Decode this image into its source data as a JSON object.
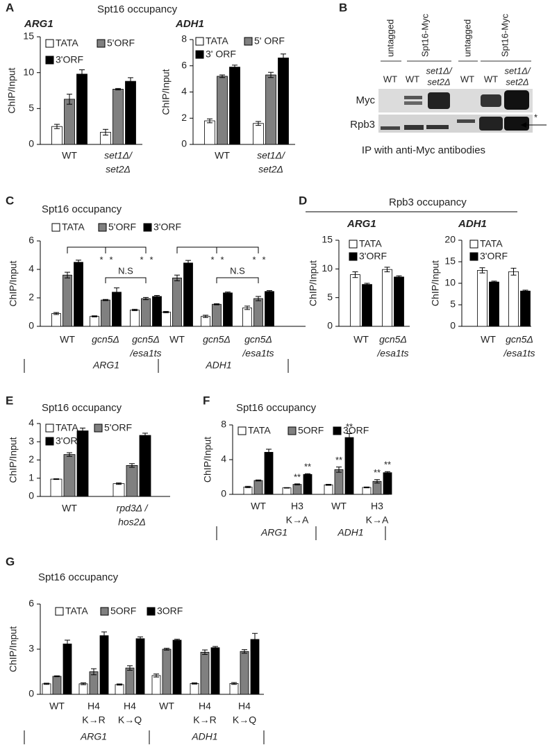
{
  "panels": [
    {
      "letter": "A",
      "title": "Spt16 occupancy"
    },
    {
      "letter": "B"
    },
    {
      "letter": "C",
      "title": "Spt16 occupancy"
    },
    {
      "letter": "D",
      "title": "Rpb3 occupancy"
    },
    {
      "letter": "E",
      "title": "Spt16 occupancy"
    },
    {
      "letter": "F",
      "title": "Spt16 occupancy"
    },
    {
      "letter": "G",
      "title": "Spt16 occupancy"
    }
  ],
  "blot": {
    "headers": [
      "untagged",
      "Spt16-Myc",
      "untagged",
      "Spt16-Myc"
    ],
    "lanes": [
      "WT",
      "WT",
      [
        "set1Δ/",
        "set2Δ"
      ],
      "WT",
      "WT",
      [
        "set1Δ/",
        "set2Δ"
      ]
    ],
    "rows": [
      "Myc",
      "Rpb3"
    ],
    "marker": "*",
    "caption": "IP with anti-Myc antibodies"
  },
  "chart_data": [
    {
      "type": "bar",
      "title": "ARG1",
      "ylabel": "ChIP/Input",
      "categories": [
        "WT",
        [
          "set1Δ/",
          "set2Δ"
        ]
      ],
      "italic": [
        false,
        true
      ],
      "ylim": [
        0,
        15
      ],
      "yticks": [
        0,
        5,
        10,
        15
      ],
      "series": [
        {
          "name": "TATA",
          "color": "#ffffff",
          "values": [
            2.5,
            1.7
          ],
          "errors": [
            0.3,
            0.4
          ]
        },
        {
          "name": "5'ORF",
          "color": "#808080",
          "values": [
            6.3,
            7.7
          ],
          "errors": [
            0.7,
            0.1
          ]
        },
        {
          "name": "3'ORF",
          "color": "#000000",
          "values": [
            9.8,
            8.8
          ],
          "errors": [
            0.6,
            0.5
          ]
        }
      ]
    },
    {
      "type": "bar",
      "title": "ADH1",
      "ylabel": "ChIP/Input",
      "categories": [
        "WT",
        [
          "set1Δ/",
          "set2Δ"
        ]
      ],
      "italic": [
        false,
        true
      ],
      "ylim": [
        0,
        8
      ],
      "yticks": [
        0,
        2,
        4,
        6,
        8
      ],
      "series": [
        {
          "name": "TATA",
          "color": "#ffffff",
          "values": [
            1.8,
            1.6
          ],
          "errors": [
            0.15,
            0.15
          ]
        },
        {
          "name": "5' ORF",
          "color": "#808080",
          "values": [
            5.2,
            5.3
          ],
          "errors": [
            0.1,
            0.2
          ]
        },
        {
          "name": "3' ORF",
          "color": "#000000",
          "values": [
            5.9,
            6.6
          ],
          "errors": [
            0.15,
            0.3
          ]
        }
      ]
    },
    {
      "type": "bar",
      "ylabel": "ChIP/Input",
      "categories": [
        "WT",
        "gcn5Δ",
        [
          "gcn5Δ",
          "/esa1ts"
        ],
        "WT",
        "gcn5Δ",
        [
          "gcn5Δ",
          "/esa1ts"
        ]
      ],
      "italic": [
        false,
        true,
        true,
        false,
        true,
        true
      ],
      "groups": [
        "ARG1",
        "ADH1"
      ],
      "ylim": [
        0,
        6
      ],
      "yticks": [
        0,
        2,
        4,
        6
      ],
      "ns_labels": [
        "N.S",
        "N.S"
      ],
      "series": [
        {
          "name": "TATA",
          "color": "#ffffff",
          "values": [
            0.9,
            0.7,
            1.15,
            1.0,
            0.7,
            1.3
          ],
          "errors": [
            0.07,
            0.04,
            0.05,
            0.05,
            0.08,
            0.12
          ]
        },
        {
          "name": "5'ORF",
          "color": "#808080",
          "values": [
            3.6,
            1.85,
            1.95,
            3.4,
            1.55,
            1.95
          ],
          "errors": [
            0.2,
            0.04,
            0.08,
            0.2,
            0.04,
            0.15
          ]
        },
        {
          "name": "3'ORF",
          "color": "#000000",
          "values": [
            4.5,
            2.4,
            2.1,
            4.45,
            2.35,
            2.45
          ],
          "errors": [
            0.15,
            0.3,
            0.07,
            0.18,
            0.06,
            0.06
          ],
          "annotations": [
            null,
            "*",
            "*",
            null,
            "*",
            "*"
          ]
        }
      ],
      "bracket_marks": [
        null,
        "*",
        "*",
        null,
        "*",
        "*"
      ]
    },
    {
      "type": "bar",
      "title": "ARG1",
      "ylabel": "ChIP/Input",
      "categories": [
        "WT",
        [
          "gcn5Δ",
          "/esa1ts"
        ]
      ],
      "italic": [
        false,
        true
      ],
      "ylim": [
        0,
        15
      ],
      "yticks": [
        0,
        5,
        10,
        15
      ],
      "series": [
        {
          "name": "TATA",
          "color": "#ffffff",
          "values": [
            9.0,
            9.9
          ],
          "errors": [
            0.5,
            0.4
          ]
        },
        {
          "name": "3'ORF",
          "color": "#000000",
          "values": [
            7.3,
            8.6
          ],
          "errors": [
            0.2,
            0.2
          ]
        }
      ]
    },
    {
      "type": "bar",
      "title": "ADH1",
      "ylabel": "ChIP/Input",
      "categories": [
        "WT",
        [
          "gcn5Δ",
          "/esa1ts"
        ]
      ],
      "italic": [
        false,
        true
      ],
      "ylim": [
        0,
        20
      ],
      "yticks": [
        0,
        5,
        10,
        15,
        20
      ],
      "series": [
        {
          "name": "TATA",
          "color": "#ffffff",
          "values": [
            13.0,
            12.7
          ],
          "errors": [
            0.6,
            0.8
          ]
        },
        {
          "name": "3'ORF",
          "color": "#000000",
          "values": [
            10.3,
            8.2
          ],
          "errors": [
            0.2,
            0.2
          ]
        }
      ]
    },
    {
      "type": "bar",
      "ylabel": "ChIP/Input",
      "categories": [
        "WT",
        [
          "rpd3Δ /",
          "hos2Δ"
        ]
      ],
      "italic": [
        false,
        true
      ],
      "ylim": [
        0,
        4
      ],
      "yticks": [
        0,
        1,
        2,
        3,
        4
      ],
      "series": [
        {
          "name": "TATA",
          "color": "#ffffff",
          "values": [
            0.95,
            0.7
          ],
          "errors": [
            0.02,
            0.04
          ]
        },
        {
          "name": "5'ORF",
          "color": "#808080",
          "values": [
            2.3,
            1.7
          ],
          "errors": [
            0.1,
            0.1
          ]
        },
        {
          "name": "3'ORF",
          "color": "#000000",
          "values": [
            3.6,
            3.35
          ],
          "errors": [
            0.15,
            0.12
          ]
        }
      ]
    },
    {
      "type": "bar",
      "ylabel": "ChIP/Input",
      "categories": [
        "WT",
        [
          "H3",
          "K→A"
        ],
        "WT",
        [
          "H3",
          "K→A"
        ]
      ],
      "italic": [
        false,
        false,
        false,
        false
      ],
      "groups": [
        "ARG1",
        "ADH1"
      ],
      "ylim": [
        0,
        8
      ],
      "yticks": [
        0,
        4,
        8
      ],
      "series": [
        {
          "name": "TATA",
          "color": "#ffffff",
          "values": [
            0.85,
            0.75,
            1.1,
            0.8
          ],
          "errors": [
            0.08,
            0.03,
            0.06,
            0.05
          ]
        },
        {
          "name": "5ORF",
          "color": "#808080",
          "values": [
            1.6,
            1.15,
            2.85,
            1.5
          ],
          "errors": [
            0.06,
            0.06,
            0.3,
            0.2
          ],
          "annotations": [
            null,
            "**",
            "**",
            "**"
          ]
        },
        {
          "name": "3ORF",
          "color": "#000000",
          "values": [
            4.85,
            2.3,
            6.55,
            2.5
          ],
          "errors": [
            0.35,
            0.08,
            0.45,
            0.12
          ],
          "annotations": [
            null,
            "**",
            "**",
            "**"
          ]
        }
      ]
    },
    {
      "type": "bar",
      "ylabel": "ChIP/Input",
      "categories": [
        "WT",
        [
          "H4",
          "K→R"
        ],
        [
          "H4",
          "K→Q"
        ],
        "WT",
        [
          "H4",
          "K→R"
        ],
        [
          "H4",
          "K→Q"
        ]
      ],
      "italic": [
        false,
        false,
        false,
        false,
        false,
        false
      ],
      "groups": [
        "ARG1",
        "ADH1"
      ],
      "ylim": [
        0,
        6
      ],
      "yticks": [
        0,
        3,
        6
      ],
      "series": [
        {
          "name": "TATA",
          "color": "#ffffff",
          "values": [
            0.7,
            0.7,
            0.65,
            1.25,
            0.72,
            0.72
          ],
          "errors": [
            0.04,
            0.06,
            0.04,
            0.1,
            0.04,
            0.06
          ]
        },
        {
          "name": "5ORF",
          "color": "#808080",
          "values": [
            1.2,
            1.5,
            1.75,
            3.0,
            2.8,
            2.85
          ],
          "errors": [
            0.03,
            0.2,
            0.15,
            0.06,
            0.15,
            0.12
          ]
        },
        {
          "name": "3ORF",
          "color": "#000000",
          "values": [
            3.35,
            3.9,
            3.7,
            3.6,
            3.1,
            3.65
          ],
          "errors": [
            0.25,
            0.25,
            0.12,
            0.06,
            0.08,
            0.4
          ]
        }
      ]
    }
  ]
}
